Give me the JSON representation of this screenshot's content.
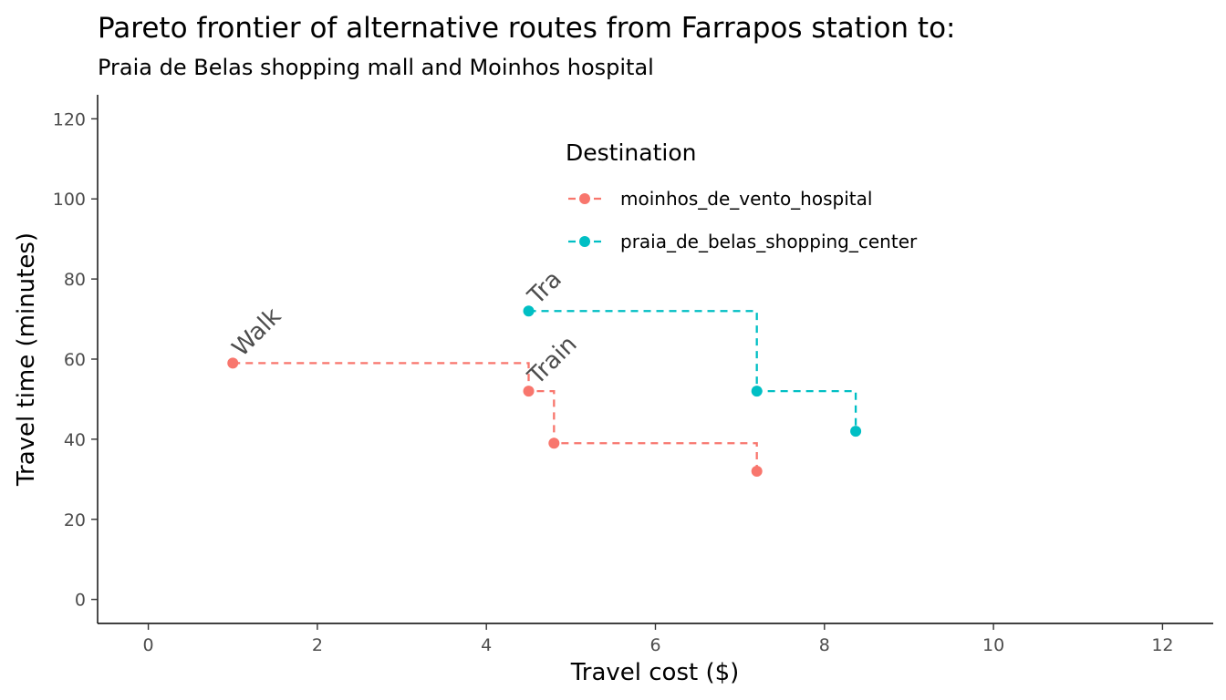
{
  "chart_data": {
    "type": "line",
    "title": "Pareto frontier of alternative routes from Farrapos station to:",
    "subtitle": "Praia de Belas shopping mall and Moinhos hospital",
    "xlabel": "Travel cost ($)",
    "ylabel": "Travel time (minutes)",
    "xlim": [
      -0.6,
      12.6
    ],
    "ylim": [
      -6,
      126
    ],
    "x_ticks": [
      0,
      2,
      4,
      6,
      8,
      10,
      12
    ],
    "y_ticks": [
      0,
      20,
      40,
      60,
      80,
      100,
      120
    ],
    "grid": false,
    "line_style": "dashed step",
    "legend": {
      "title": "Destination",
      "position": "top-center"
    },
    "series": [
      {
        "name": "moinhos_de_vento_hospital",
        "color": "#f8766d",
        "points": [
          {
            "x": 1.0,
            "y": 59
          },
          {
            "x": 4.5,
            "y": 52
          },
          {
            "x": 4.8,
            "y": 39
          },
          {
            "x": 7.2,
            "y": 32
          }
        ]
      },
      {
        "name": "praia_de_belas_shopping_center",
        "color": "#00bfc4",
        "points": [
          {
            "x": 4.5,
            "y": 72
          },
          {
            "x": 7.2,
            "y": 52
          },
          {
            "x": 8.37,
            "y": 42
          }
        ]
      }
    ],
    "annotations": [
      {
        "text": "Walk",
        "x": 1.0,
        "y": 59
      },
      {
        "text": "Train",
        "x": 4.5,
        "y": 52
      },
      {
        "text": "Tra",
        "x": 4.5,
        "y": 72
      }
    ]
  }
}
